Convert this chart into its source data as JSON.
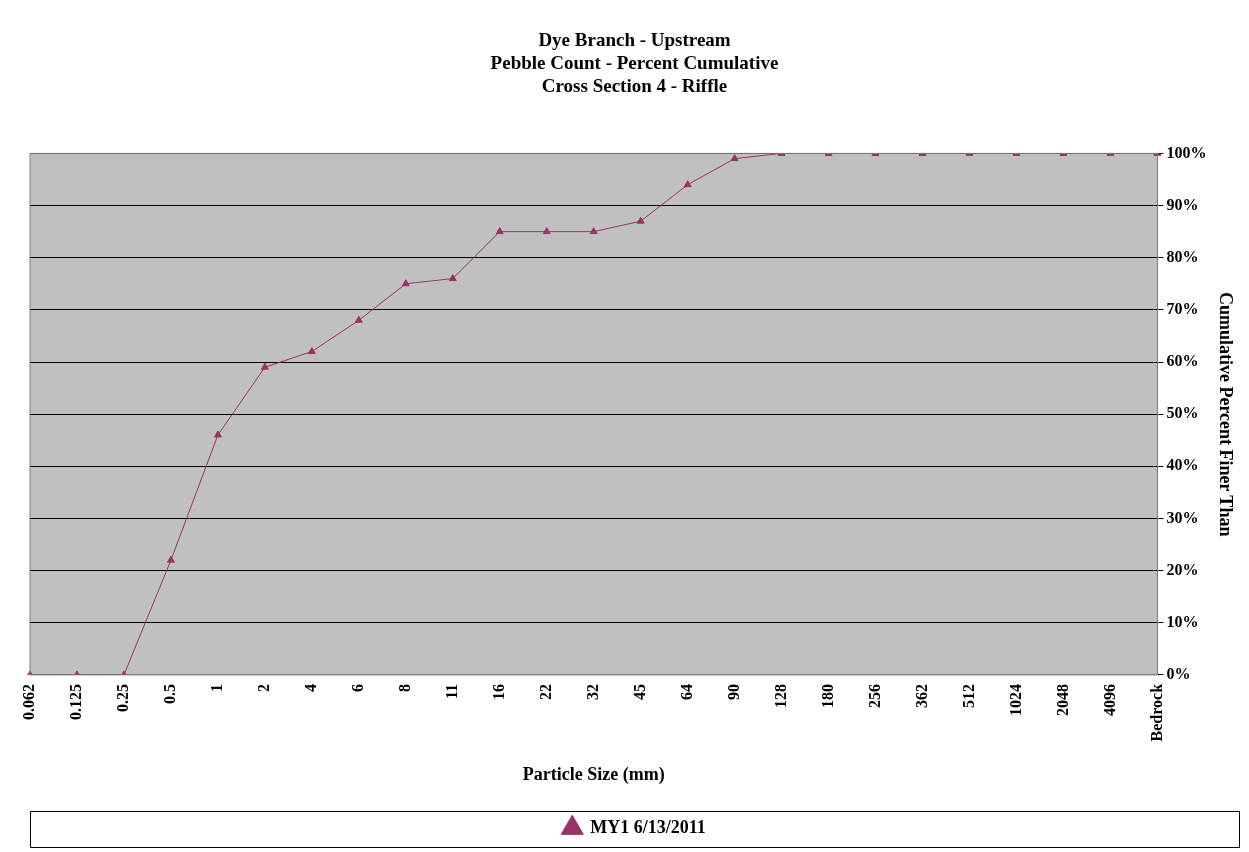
{
  "chart_data": {
    "type": "line",
    "title": [
      "Dye Branch - Upstream",
      "Pebble Count - Percent Cumulative",
      "Cross Section 4 - Riffle"
    ],
    "xlabel": "Particle Size (mm)",
    "ylabel": "Cumulative Percent Finer Than",
    "categories": [
      "0.062",
      "0.125",
      "0.25",
      "0.5",
      "1",
      "2",
      "4",
      "6",
      "8",
      "11",
      "16",
      "22",
      "32",
      "45",
      "64",
      "90",
      "128",
      "180",
      "256",
      "362",
      "512",
      "1024",
      "2048",
      "4096",
      "Bedrock"
    ],
    "series": [
      {
        "name": "MY1 6/13/2011",
        "color": "#993366",
        "values": [
          0,
          0,
          0,
          22,
          46,
          59,
          62,
          68,
          75,
          76,
          85,
          85,
          85,
          87,
          94,
          99,
          100,
          100,
          100,
          100,
          100,
          100,
          100,
          100,
          100
        ]
      }
    ],
    "ylim": [
      0,
      100
    ],
    "yticks": [
      {
        "value": 0,
        "label": "0%"
      },
      {
        "value": 10,
        "label": "10%"
      },
      {
        "value": 20,
        "label": "20%"
      },
      {
        "value": 30,
        "label": "30%"
      },
      {
        "value": 40,
        "label": "40%"
      },
      {
        "value": 50,
        "label": "50%"
      },
      {
        "value": 60,
        "label": "60%"
      },
      {
        "value": 70,
        "label": "70%"
      },
      {
        "value": 80,
        "label": "80%"
      },
      {
        "value": 90,
        "label": "90%"
      },
      {
        "value": 100,
        "label": "100%"
      }
    ],
    "grid": "y",
    "legend": "bottom",
    "marker": "triangle",
    "line_style": "solid"
  }
}
